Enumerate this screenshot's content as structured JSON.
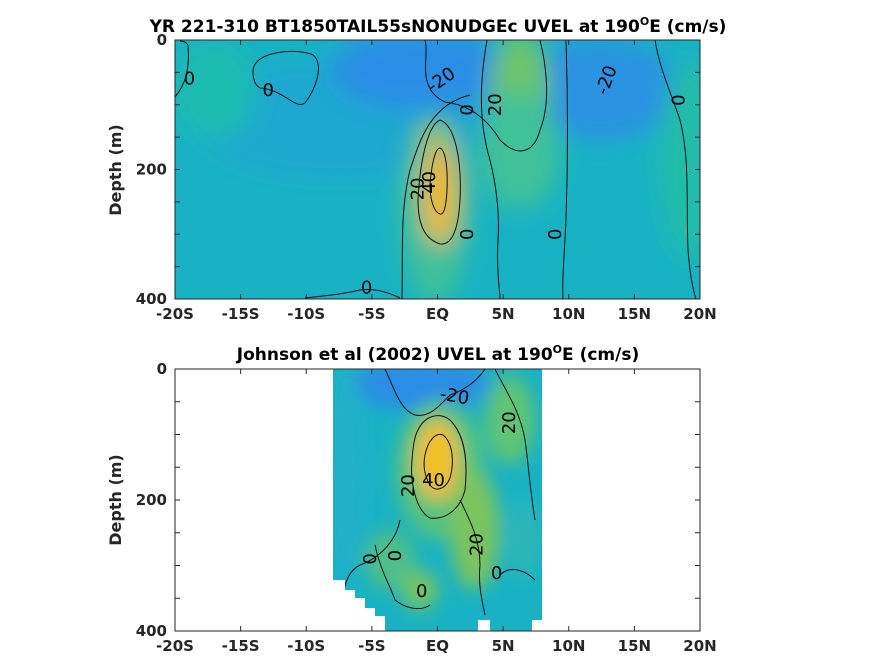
{
  "chart_data": [
    {
      "type": "heatmap",
      "title_main": "YR 221-310 BT1850TAIL55sNONUDGEc UVEL at 190",
      "title_sup": "O",
      "title_tail": "E (cm/s)",
      "ylabel": "Depth (m)",
      "xlim": [
        -20,
        20
      ],
      "ylim": [
        0,
        400
      ],
      "x_ticks": [
        -20,
        -15,
        -10,
        -5,
        0,
        5,
        10,
        15,
        20
      ],
      "x_tick_labels": [
        "-20S",
        "-15S",
        "-10S",
        "-5S",
        "EQ",
        "5N",
        "10N",
        "15N",
        "20N"
      ],
      "y_ticks": [
        0,
        200,
        400
      ],
      "y_tick_labels": [
        "0",
        "200",
        "400"
      ],
      "data_xlim": [
        -20,
        20
      ],
      "contour_labels": [
        {
          "x": -18.9,
          "y": 60,
          "text": "0",
          "rot": 0
        },
        {
          "x": -12.9,
          "y": 78,
          "text": "0",
          "rot": 0
        },
        {
          "x": 0.3,
          "y": 62,
          "text": "-20",
          "rot": -35
        },
        {
          "x": 2.3,
          "y": 108,
          "text": "0",
          "rot": -90
        },
        {
          "x": 4.4,
          "y": 100,
          "text": "20",
          "rot": -90
        },
        {
          "x": 12.9,
          "y": 62,
          "text": "-20",
          "rot": -70
        },
        {
          "x": 18.4,
          "y": 93,
          "text": "0",
          "rot": -90
        },
        {
          "x": -0.6,
          "y": 220,
          "text": "40",
          "rot": -90
        },
        {
          "x": -1.5,
          "y": 230,
          "text": "20",
          "rot": -90
        },
        {
          "x": 2.3,
          "y": 300,
          "text": "0",
          "rot": -90
        },
        {
          "x": 9.0,
          "y": 300,
          "text": "0",
          "rot": -90
        },
        {
          "x": -5.4,
          "y": 383,
          "text": "0",
          "rot": 0
        }
      ]
    },
    {
      "type": "heatmap",
      "title_main": "Johnson et al (2002) UVEL at 190",
      "title_sup": "O",
      "title_tail": "E (cm/s)",
      "ylabel": "Depth (m)",
      "xlim": [
        -20,
        20
      ],
      "ylim": [
        0,
        400
      ],
      "x_ticks": [
        -20,
        -15,
        -10,
        -5,
        0,
        5,
        10,
        15,
        20
      ],
      "x_tick_labels": [
        "-20S",
        "-15S",
        "-10S",
        "-5S",
        "EQ",
        "5N",
        "10N",
        "15N",
        "20N"
      ],
      "y_ticks": [
        0,
        200,
        400
      ],
      "y_tick_labels": [
        "0",
        "200",
        "400"
      ],
      "data_xlim": [
        -8,
        8
      ],
      "contour_labels": [
        {
          "x": 1.3,
          "y": 42,
          "text": "-20",
          "rot": 10
        },
        {
          "x": 5.5,
          "y": 82,
          "text": "20",
          "rot": -90
        },
        {
          "x": -2.2,
          "y": 178,
          "text": "20",
          "rot": -90
        },
        {
          "x": -0.3,
          "y": 170,
          "text": "40",
          "rot": 0
        },
        {
          "x": -5.1,
          "y": 290,
          "text": "0",
          "rot": -90
        },
        {
          "x": -3.2,
          "y": 285,
          "text": "0",
          "rot": -90
        },
        {
          "x": 3.0,
          "y": 268,
          "text": "20",
          "rot": -90
        },
        {
          "x": 4.5,
          "y": 312,
          "text": "0",
          "rot": 0
        },
        {
          "x": -1.2,
          "y": 340,
          "text": "0",
          "rot": 0
        }
      ]
    }
  ]
}
